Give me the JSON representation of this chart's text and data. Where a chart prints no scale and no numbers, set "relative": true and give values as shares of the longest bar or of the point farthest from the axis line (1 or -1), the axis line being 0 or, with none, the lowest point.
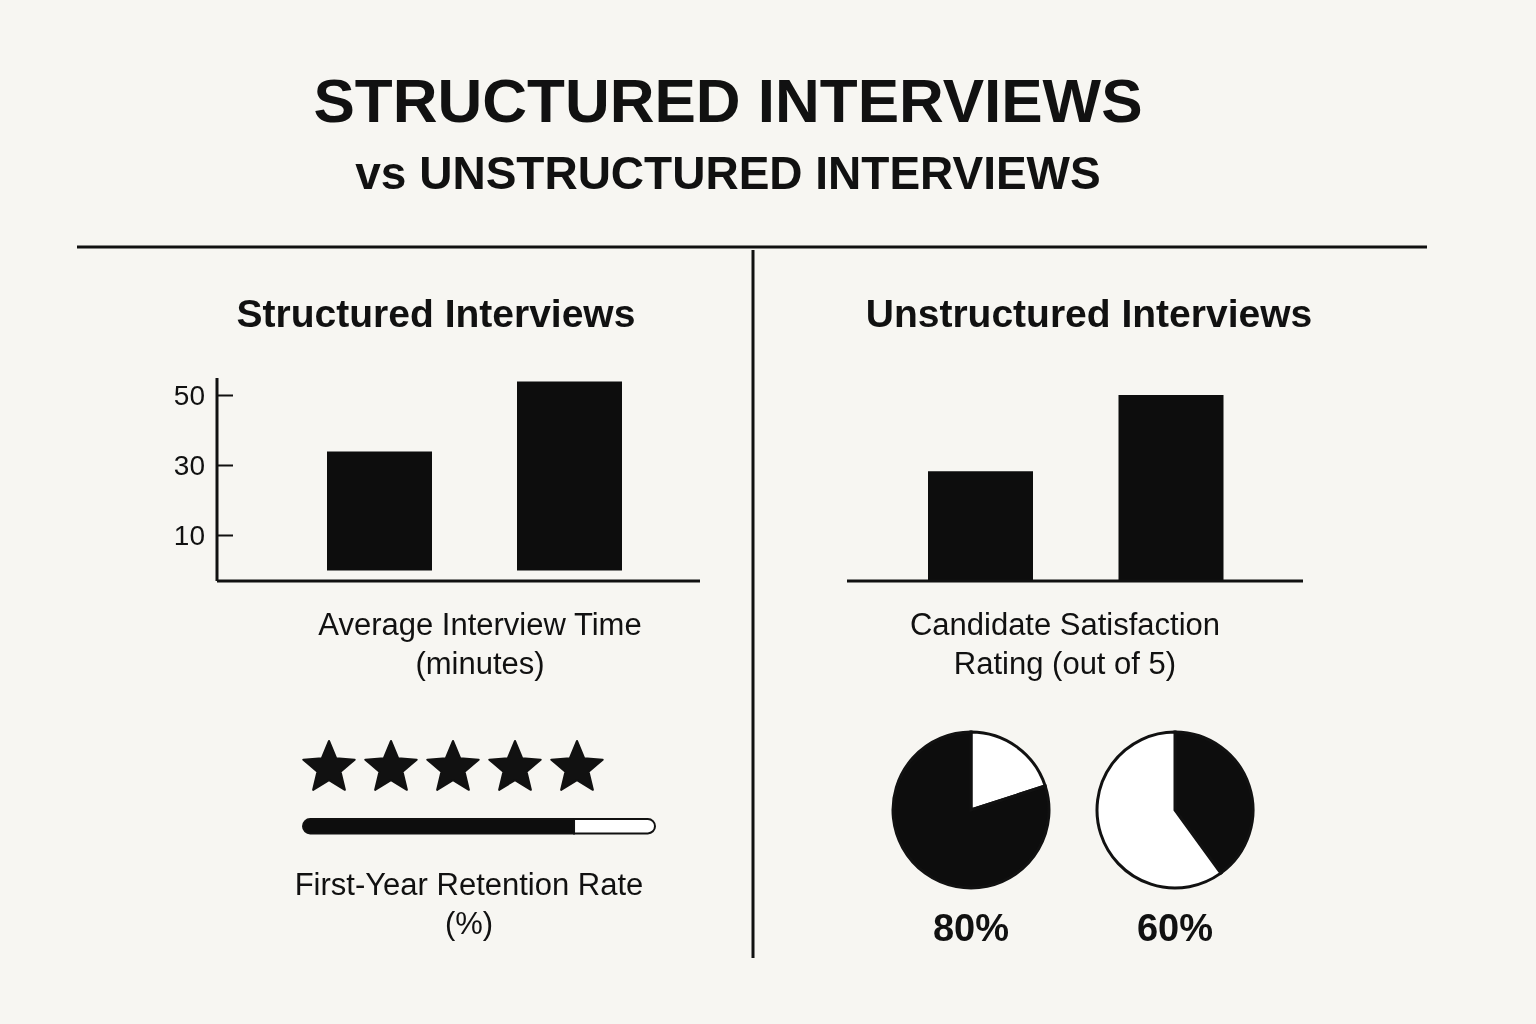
{
  "chart_data": [
    {
      "type": "other",
      "title": "STRUCTURED INTERVIEWS",
      "subtitle": "vs UNSTRUCTURED INTERVIEWS"
    },
    {
      "type": "bar",
      "title": "Structured Interviews",
      "xlabel": "Average Interview Time (minutes)",
      "categories": [
        null,
        null
      ],
      "values": [
        34,
        54
      ],
      "color": "#0d0d0d",
      "ylim": [
        -3,
        55
      ],
      "yticks": [
        10,
        30,
        50
      ]
    },
    {
      "type": "bar",
      "title": "Unstructured Interviews",
      "xlabel": "Candidate Satisfaction Rating (out of 5)",
      "relative": true,
      "categories": [
        null,
        null
      ],
      "values": [
        0.59,
        1
      ],
      "color": "#0d0d0d"
    },
    {
      "type": "bar",
      "orientation": "horizontal",
      "stacked": true,
      "relative": true,
      "xlabel": "First-Year Retention Rate (%)",
      "categories": [
        null
      ],
      "series": [
        {
          "color": "#0d0d0d",
          "values": [
            0.77
          ]
        },
        {
          "color": "#ffffff",
          "values": [
            0.23
          ]
        }
      ]
    },
    {
      "type": "pie",
      "categories": [
        null,
        null
      ],
      "values": [
        20,
        80
      ],
      "colors": [
        "#ffffff",
        "#0d0d0d"
      ],
      "value_labels": [
        null,
        "80%"
      ]
    },
    {
      "type": "pie",
      "categories": [
        null,
        null
      ],
      "values": [
        40,
        60
      ],
      "colors": [
        "#0d0d0d",
        "#ffffff"
      ],
      "value_labels": [
        null,
        "60%"
      ]
    }
  ]
}
